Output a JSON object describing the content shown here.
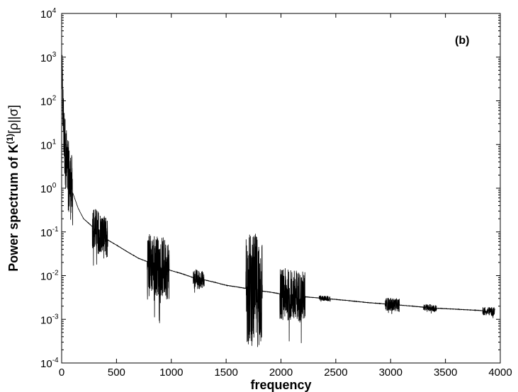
{
  "chart_data": {
    "type": "line",
    "title": "",
    "panel_label": "(b)",
    "xlabel": "frequency",
    "ylabel": "Power spectrum of  K",
    "ylabel_superscript": "(1)",
    "ylabel_suffix": "[ρ||σ]",
    "xlim": [
      0,
      4000
    ],
    "ylim": [
      0.0001,
      10000
    ],
    "yscale": "log",
    "grid": false,
    "x_ticks": [
      0,
      500,
      1000,
      1500,
      2000,
      2500,
      3000,
      3500,
      4000
    ],
    "y_tick_exponents": [
      -4,
      -3,
      -2,
      -1,
      0,
      1,
      2,
      3,
      4
    ],
    "y_tick_base": "10",
    "series": [
      {
        "x": [
          2,
          5,
          8,
          12,
          18,
          25,
          35,
          50,
          70,
          100,
          150,
          200,
          300,
          400,
          500,
          600,
          700,
          800,
          900,
          1000,
          1100,
          1200,
          1300,
          1400,
          1500,
          1600,
          1700,
          1800,
          1900,
          2000,
          2200,
          2400,
          2600,
          2800,
          3000,
          3200,
          3400,
          3600,
          3800,
          3950
        ],
        "y": [
          200,
          180,
          120,
          60,
          25,
          12,
          6,
          3,
          1.5,
          0.8,
          0.35,
          0.2,
          0.12,
          0.07,
          0.05,
          0.035,
          0.025,
          0.02,
          0.016,
          0.013,
          0.011,
          0.009,
          0.008,
          0.007,
          0.006,
          0.0055,
          0.005,
          0.0045,
          0.0042,
          0.0038,
          0.0033,
          0.003,
          0.0027,
          0.0024,
          0.0022,
          0.002,
          0.0018,
          0.0017,
          0.0016,
          0.0015
        ]
      }
    ],
    "noise_bursts": [
      {
        "x0": 5,
        "x1": 100,
        "amplitude_decades": 0.8
      },
      {
        "x0": 280,
        "x1": 420,
        "amplitude_decades": 0.5
      },
      {
        "x0": 780,
        "x1": 980,
        "amplitude_decades": 0.7
      },
      {
        "x0": 1200,
        "x1": 1300,
        "amplitude_decades": 0.2
      },
      {
        "x0": 1680,
        "x1": 1830,
        "amplitude_decades": 1.3
      },
      {
        "x0": 1990,
        "x1": 2220,
        "amplitude_decades": 0.6
      },
      {
        "x0": 2350,
        "x1": 2450,
        "amplitude_decades": 0.06
      },
      {
        "x0": 2950,
        "x1": 3080,
        "amplitude_decades": 0.15
      },
      {
        "x0": 3300,
        "x1": 3420,
        "amplitude_decades": 0.08
      },
      {
        "x0": 3840,
        "x1": 3990,
        "amplitude_decades": 0.1
      }
    ],
    "line_color": "#000000"
  }
}
